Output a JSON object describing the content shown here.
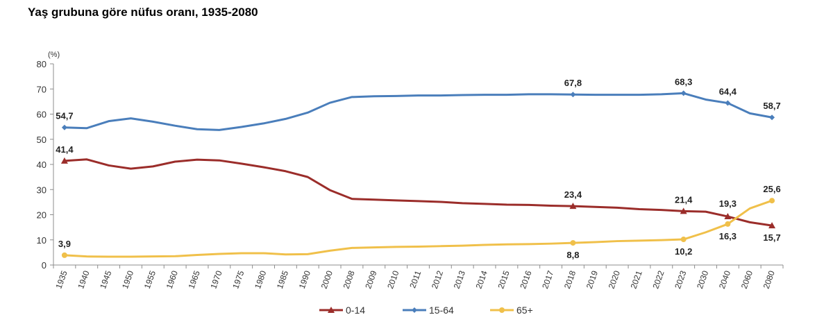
{
  "chart_data": {
    "type": "line",
    "title": "Yaş grubuna göre nüfus oranı, 1935-2080",
    "ylabel": "(%)",
    "xlabel": "",
    "ylim": [
      0,
      80
    ],
    "yticks": [
      0,
      10,
      20,
      30,
      40,
      50,
      60,
      70,
      80
    ],
    "grid": false,
    "legend_position": "bottom",
    "categories": [
      "1935",
      "1940",
      "1945",
      "1950",
      "1955",
      "1960",
      "1965",
      "1970",
      "1975",
      "1980",
      "1985",
      "1990",
      "2000",
      "2008",
      "2009",
      "2010",
      "2011",
      "2012",
      "2013",
      "2014",
      "2015",
      "2016",
      "2017",
      "2018",
      "2019",
      "2020",
      "2021",
      "2022",
      "2023",
      "2030",
      "2040",
      "2060",
      "2080"
    ],
    "series": [
      {
        "name": "0-14",
        "color": "#9b2d2a",
        "marker": "triangle",
        "values": [
          41.4,
          42.0,
          39.6,
          38.3,
          39.2,
          41.1,
          41.9,
          41.6,
          40.3,
          38.9,
          37.3,
          35.0,
          29.8,
          26.3,
          26.0,
          25.7,
          25.4,
          25.1,
          24.6,
          24.3,
          24.0,
          23.9,
          23.6,
          23.4,
          23.1,
          22.8,
          22.2,
          21.9,
          21.4,
          21.2,
          19.3,
          17.0,
          15.7
        ],
        "labels": {
          "1935": "41,4",
          "2018": "23,4",
          "2023": "21,4",
          "2040": "19,3",
          "2080": "15,7"
        }
      },
      {
        "name": "15-64",
        "color": "#4a7ebb",
        "marker": "diamond",
        "values": [
          54.7,
          54.4,
          57.2,
          58.3,
          57.0,
          55.4,
          54.0,
          53.7,
          54.9,
          56.3,
          58.1,
          60.6,
          64.5,
          66.8,
          67.1,
          67.2,
          67.4,
          67.4,
          67.6,
          67.7,
          67.7,
          67.9,
          67.9,
          67.8,
          67.7,
          67.7,
          67.7,
          67.9,
          68.3,
          65.8,
          64.4,
          60.3,
          58.7
        ],
        "labels": {
          "1935": "54,7",
          "2018": "67,8",
          "2023": "68,3",
          "2040": "64,4",
          "2080": "58,7"
        }
      },
      {
        "name": "65+",
        "color": "#f0c04a",
        "marker": "circle",
        "values": [
          3.9,
          3.4,
          3.3,
          3.3,
          3.4,
          3.5,
          4.0,
          4.4,
          4.7,
          4.7,
          4.2,
          4.3,
          5.7,
          6.8,
          7.0,
          7.2,
          7.3,
          7.5,
          7.7,
          8.0,
          8.2,
          8.3,
          8.5,
          8.8,
          9.1,
          9.5,
          9.7,
          9.9,
          10.2,
          13.0,
          16.3,
          22.5,
          25.6
        ],
        "labels": {
          "1935": "3,9",
          "2018": "8,8",
          "2023": "10,2",
          "2040": "16,3",
          "2080": "25,6"
        }
      }
    ]
  }
}
